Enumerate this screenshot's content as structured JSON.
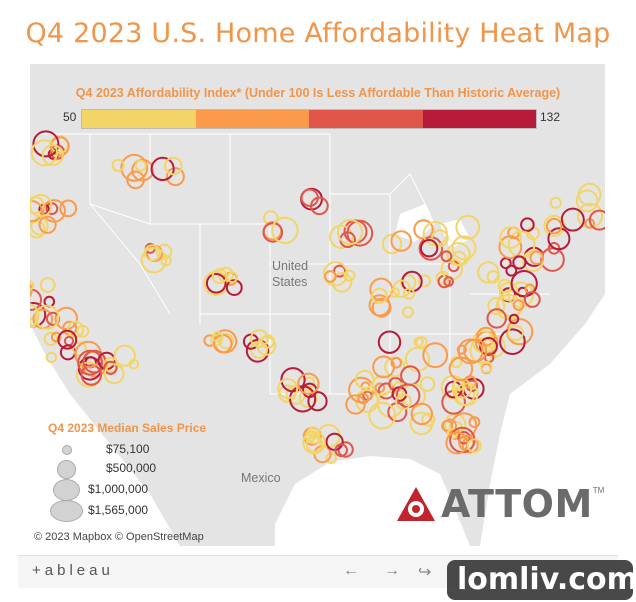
{
  "title": "Q4 2023 U.S. Home Affordability Heat Map",
  "color_legend": {
    "title": "Q4 2023 Affordability Index* (Under 100 Is Less Affordable Than Historic Average)",
    "min_label": "50",
    "max_label": "132",
    "colors": [
      "#f3d567",
      "#fb9a4a",
      "#e0564a",
      "#b81b3a"
    ]
  },
  "size_legend": {
    "title": "Q4 2023 Median Sales Price",
    "items": [
      {
        "label": "$75,100"
      },
      {
        "label": "$500,000"
      },
      {
        "label": "$1,000,000"
      },
      {
        "label": "$1,565,000"
      }
    ]
  },
  "places": {
    "country": "United States",
    "country_line1": "United",
    "country_line2": "States",
    "mexico": "Mexico"
  },
  "brand": {
    "name": "ATTOM",
    "tm": "TM"
  },
  "copyright": "© 2023 Mapbox  © OpenStreetMap",
  "toolbar": {
    "logo": "+ableau"
  },
  "watermark": "lomliv.com"
}
